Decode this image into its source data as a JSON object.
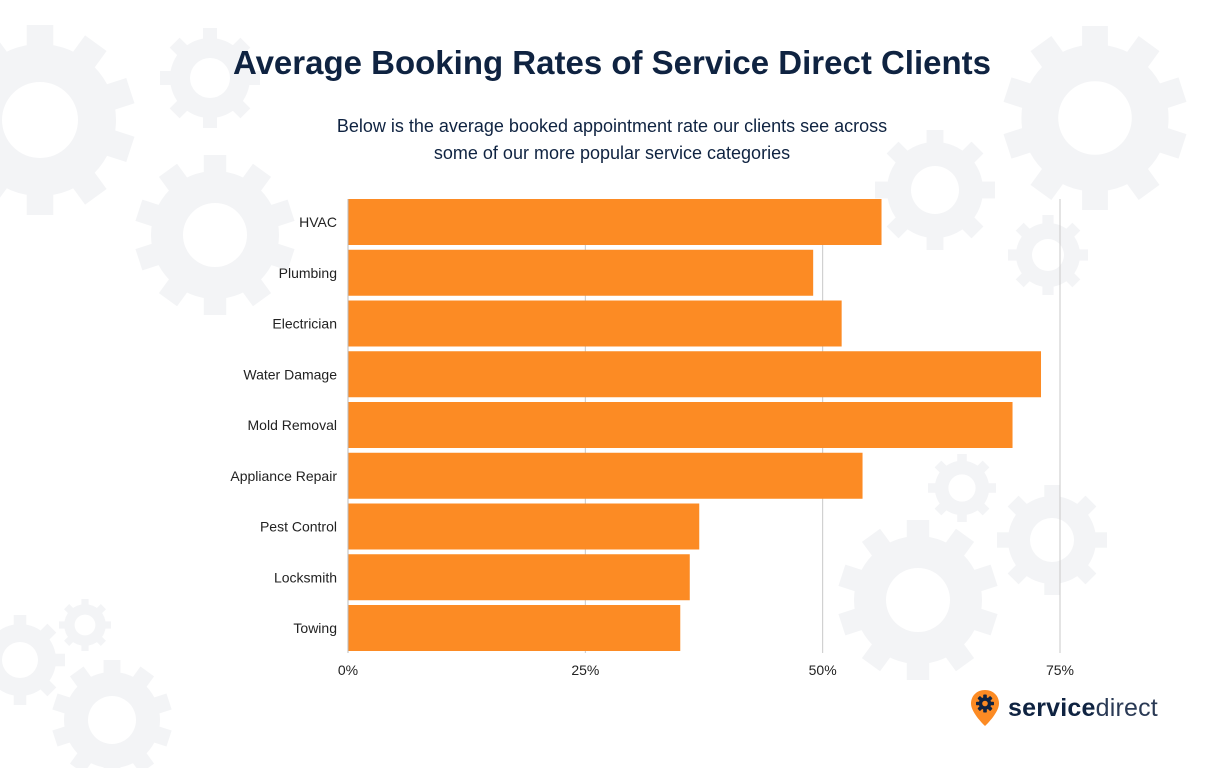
{
  "title": "Average Booking Rates of Service Direct Clients",
  "subtitle_line1": "Below is the average booked appointment rate our clients see across",
  "subtitle_line2": "some of our more popular service categories",
  "brand": {
    "name_bold": "service",
    "name_light": "direct",
    "icon": "gear-pin-icon"
  },
  "colors": {
    "bar": "#fc8b24",
    "title": "#0f2341",
    "grid": "#c8c8c8",
    "gears": "#f3f4f6"
  },
  "chart_data": {
    "type": "bar",
    "orientation": "horizontal",
    "categories": [
      "HVAC",
      "Plumbing",
      "Electrician",
      "Water Damage",
      "Mold Removal",
      "Appliance Repair",
      "Pest Control",
      "Locksmith",
      "Towing"
    ],
    "values": [
      56.2,
      49,
      52,
      73,
      70,
      54.2,
      37,
      36,
      35
    ],
    "xlim": [
      0,
      75
    ],
    "xticks": [
      "0%",
      "25%",
      "50%",
      "75%"
    ],
    "grid": true
  }
}
